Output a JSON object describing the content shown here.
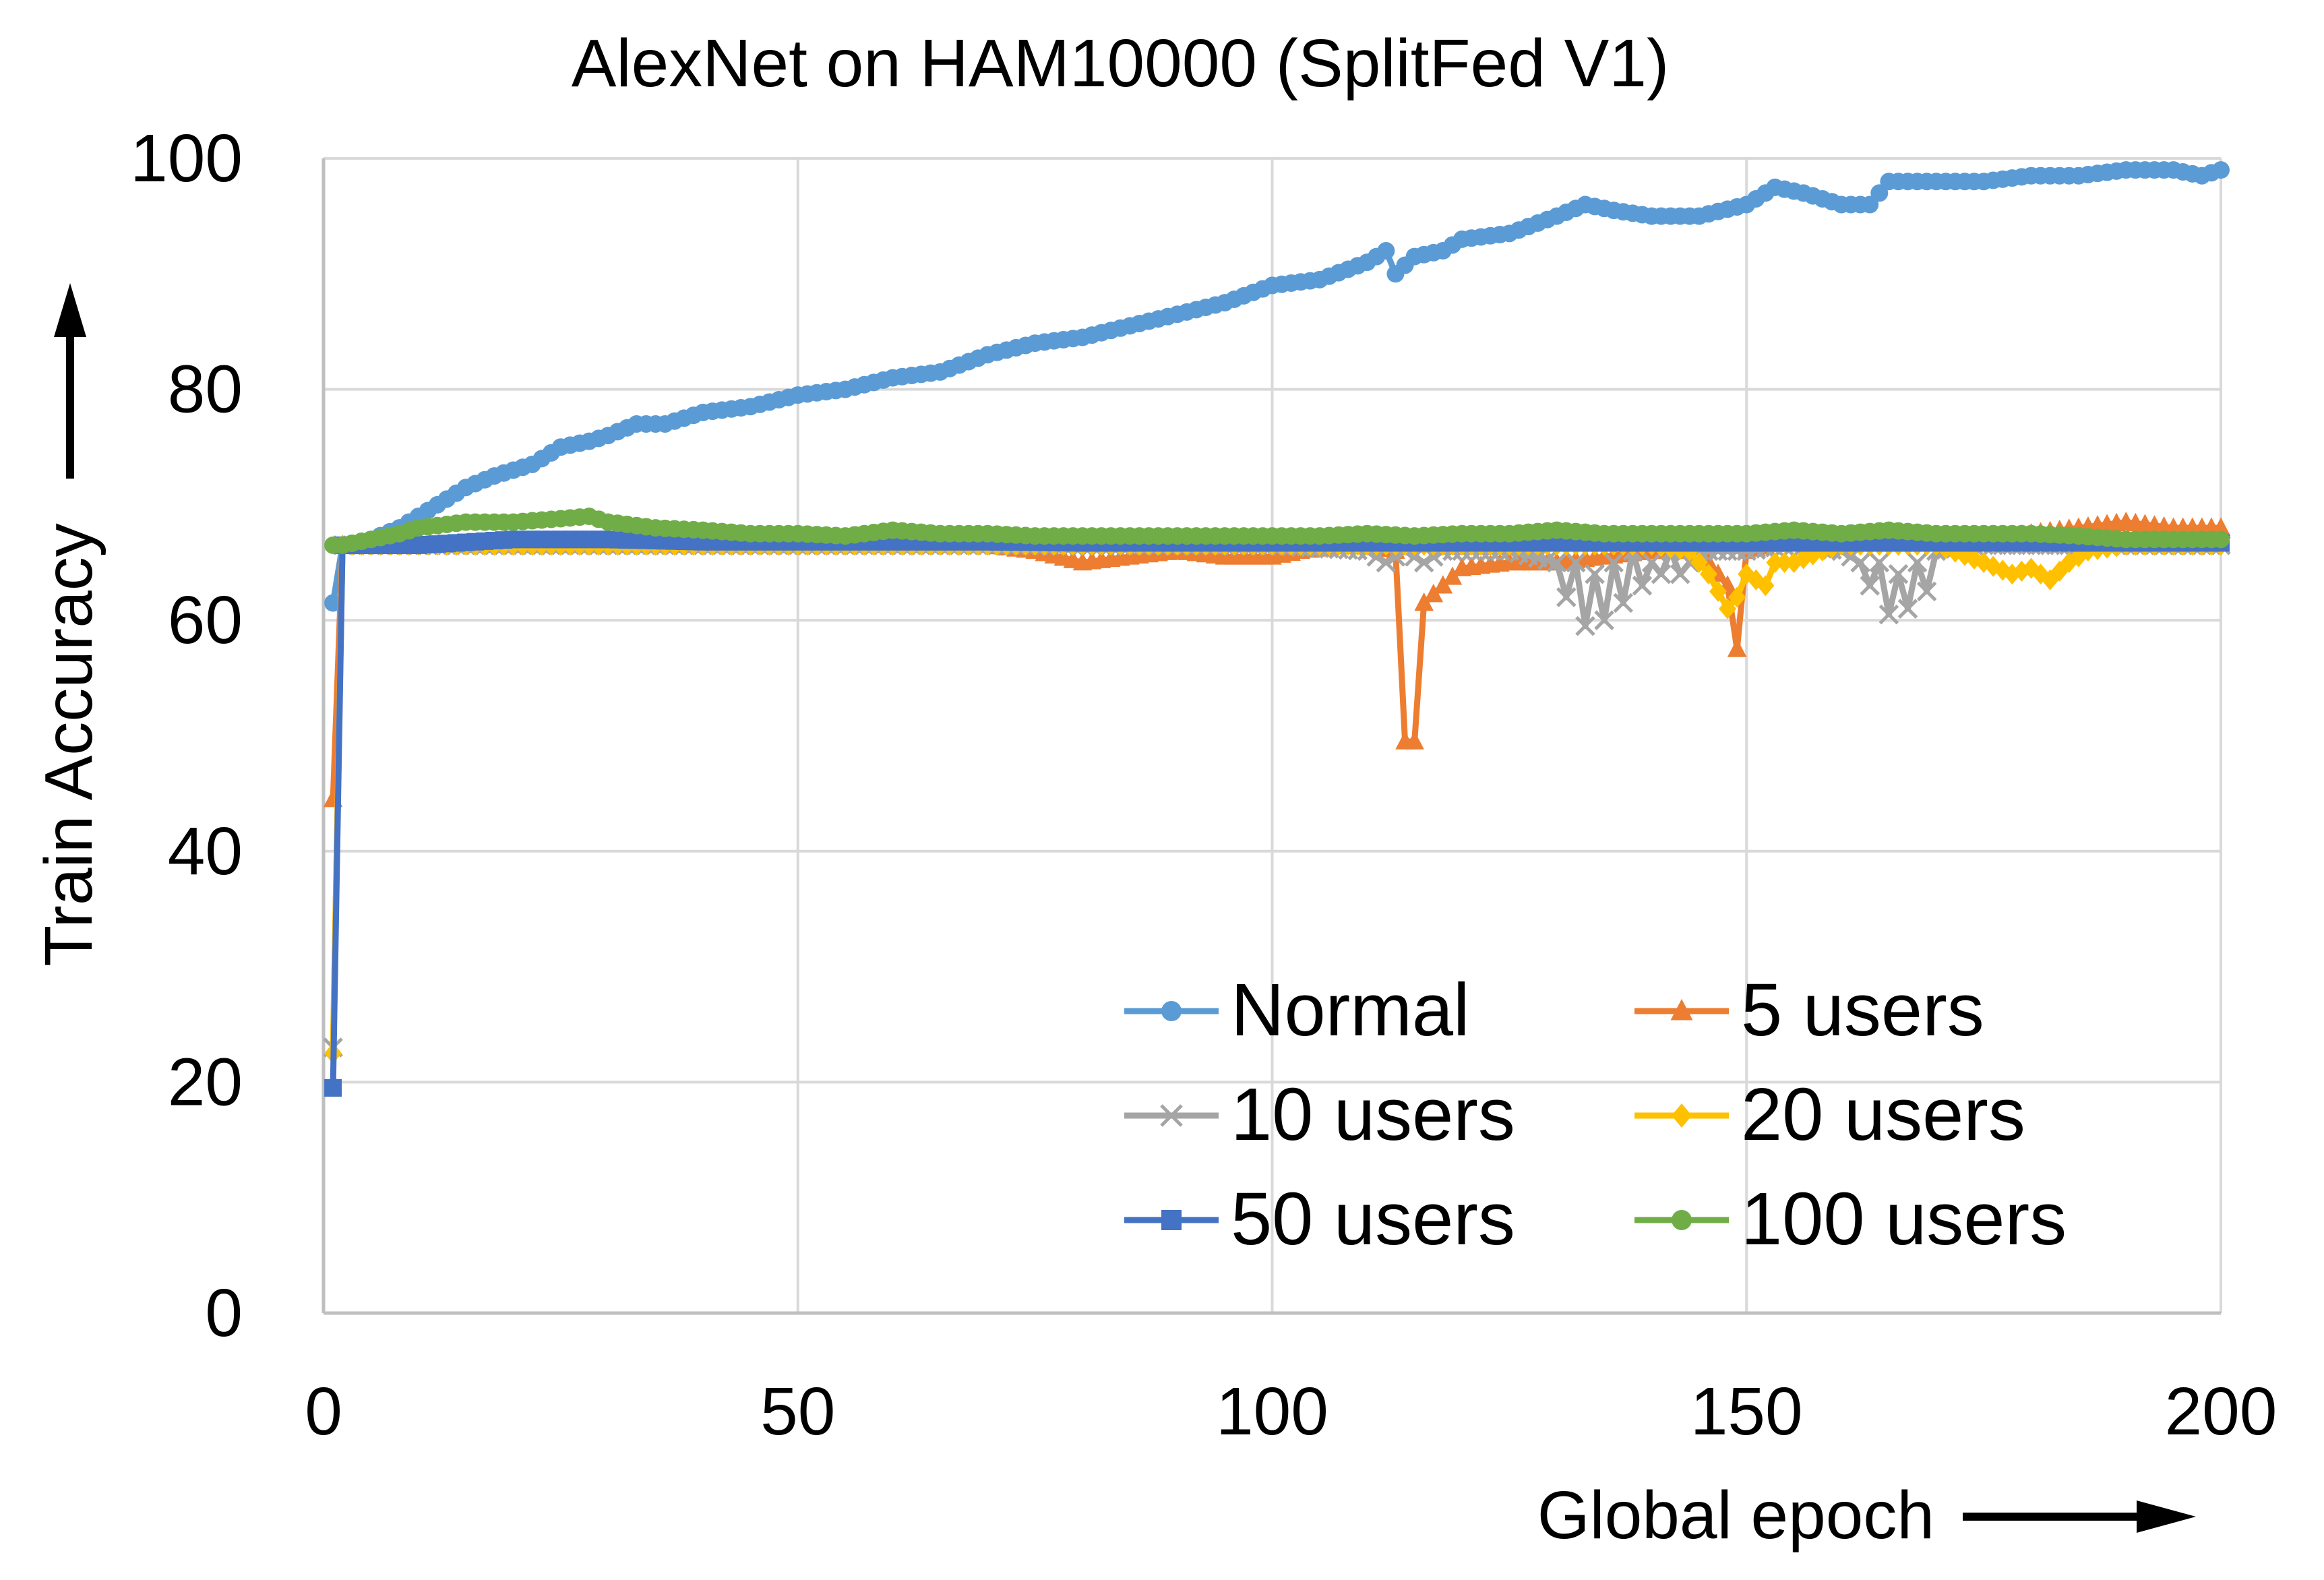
{
  "chart_data": {
    "type": "line",
    "title": "AlexNet on HAM10000 (SplitFed V1)",
    "xlabel": "Global epoch",
    "ylabel": "Train Accuracy",
    "xlim": [
      0,
      200
    ],
    "ylim": [
      0,
      100
    ],
    "x_ticks": [
      "0",
      "50",
      "100",
      "150",
      "200"
    ],
    "y_ticks": [
      "0",
      "20",
      "40",
      "60",
      "80",
      "100"
    ],
    "grid": true,
    "legend_position": "bottom-right",
    "series": [
      {
        "name": "Normal",
        "color": "#5b9bd5",
        "marker": "circle",
        "points": [
          [
            1,
            61.5
          ],
          [
            2,
            66.5
          ],
          [
            5,
            67
          ],
          [
            8,
            68
          ],
          [
            10,
            69
          ],
          [
            12,
            70
          ],
          [
            15,
            71.5
          ],
          [
            18,
            72.5
          ],
          [
            20,
            73
          ],
          [
            22,
            73.5
          ],
          [
            25,
            75
          ],
          [
            28,
            75.5
          ],
          [
            30,
            76
          ],
          [
            33,
            77
          ],
          [
            36,
            77
          ],
          [
            40,
            78
          ],
          [
            45,
            78.5
          ],
          [
            50,
            79.5
          ],
          [
            55,
            80
          ],
          [
            60,
            81
          ],
          [
            65,
            81.5
          ],
          [
            70,
            83
          ],
          [
            75,
            84
          ],
          [
            80,
            84.5
          ],
          [
            85,
            85.5
          ],
          [
            90,
            86.5
          ],
          [
            95,
            87.5
          ],
          [
            100,
            89
          ],
          [
            105,
            89.5
          ],
          [
            110,
            91
          ],
          [
            112,
            92
          ],
          [
            113,
            90
          ],
          [
            115,
            91.5
          ],
          [
            118,
            92
          ],
          [
            120,
            93
          ],
          [
            125,
            93.5
          ],
          [
            130,
            95
          ],
          [
            133,
            96
          ],
          [
            136,
            95.5
          ],
          [
            140,
            95
          ],
          [
            145,
            95
          ],
          [
            150,
            96
          ],
          [
            153,
            97.5
          ],
          [
            156,
            97
          ],
          [
            160,
            96
          ],
          [
            163,
            96
          ],
          [
            165,
            98
          ],
          [
            170,
            98
          ],
          [
            175,
            98
          ],
          [
            180,
            98.5
          ],
          [
            185,
            98.5
          ],
          [
            190,
            99
          ],
          [
            195,
            99
          ],
          [
            198,
            98.5
          ],
          [
            200,
            99
          ]
        ]
      },
      {
        "name": "5 users",
        "color": "#ed7d31",
        "marker": "triangle",
        "points": [
          [
            1,
            44.5
          ],
          [
            2,
            66.5
          ],
          [
            10,
            66.5
          ],
          [
            20,
            66.5
          ],
          [
            30,
            66.5
          ],
          [
            40,
            66.5
          ],
          [
            50,
            66.5
          ],
          [
            60,
            66.5
          ],
          [
            70,
            66.5
          ],
          [
            75,
            66
          ],
          [
            80,
            65
          ],
          [
            85,
            65.5
          ],
          [
            90,
            66
          ],
          [
            95,
            65.5
          ],
          [
            100,
            65.5
          ],
          [
            103,
            66
          ],
          [
            108,
            66.5
          ],
          [
            110,
            66.5
          ],
          [
            113,
            66
          ],
          [
            114,
            49.5
          ],
          [
            115,
            49.5
          ],
          [
            116,
            61.5
          ],
          [
            118,
            63
          ],
          [
            120,
            64.5
          ],
          [
            125,
            65
          ],
          [
            130,
            65
          ],
          [
            135,
            65.5
          ],
          [
            140,
            66
          ],
          [
            145,
            66
          ],
          [
            148,
            63
          ],
          [
            149,
            57.5
          ],
          [
            150,
            66
          ],
          [
            155,
            67
          ],
          [
            160,
            67
          ],
          [
            165,
            67
          ],
          [
            170,
            67
          ],
          [
            175,
            67
          ],
          [
            180,
            67.5
          ],
          [
            185,
            68
          ],
          [
            190,
            68.5
          ],
          [
            195,
            68
          ],
          [
            200,
            68
          ]
        ]
      },
      {
        "name": "10 users",
        "color": "#a5a5a5",
        "marker": "x",
        "points": [
          [
            1,
            23
          ],
          [
            2,
            66.5
          ],
          [
            20,
            66.5
          ],
          [
            50,
            66.5
          ],
          [
            80,
            66.5
          ],
          [
            100,
            66.5
          ],
          [
            110,
            66
          ],
          [
            112,
            65
          ],
          [
            114,
            66
          ],
          [
            116,
            65
          ],
          [
            118,
            66
          ],
          [
            125,
            66
          ],
          [
            130,
            65
          ],
          [
            131,
            62
          ],
          [
            132,
            65
          ],
          [
            133,
            59.5
          ],
          [
            134,
            64
          ],
          [
            135,
            60
          ],
          [
            136,
            65
          ],
          [
            137,
            61.5
          ],
          [
            138,
            66
          ],
          [
            139,
            63
          ],
          [
            140,
            65
          ],
          [
            141,
            64
          ],
          [
            142,
            66
          ],
          [
            143,
            64
          ],
          [
            145,
            66
          ],
          [
            150,
            66
          ],
          [
            155,
            66.5
          ],
          [
            160,
            66
          ],
          [
            162,
            65
          ],
          [
            163,
            63
          ],
          [
            164,
            65
          ],
          [
            165,
            60.5
          ],
          [
            166,
            64
          ],
          [
            167,
            61
          ],
          [
            168,
            65
          ],
          [
            169,
            62.5
          ],
          [
            170,
            66
          ],
          [
            175,
            66.5
          ],
          [
            180,
            66.5
          ],
          [
            190,
            66.5
          ],
          [
            200,
            66.5
          ]
        ]
      },
      {
        "name": "20 users",
        "color": "#ffc000",
        "marker": "diamond",
        "points": [
          [
            1,
            22.5
          ],
          [
            2,
            66.5
          ],
          [
            20,
            66.5
          ],
          [
            50,
            66.5
          ],
          [
            80,
            66.5
          ],
          [
            100,
            66.5
          ],
          [
            120,
            66.5
          ],
          [
            140,
            66.5
          ],
          [
            144,
            66
          ],
          [
            146,
            64
          ],
          [
            148,
            61
          ],
          [
            149,
            62
          ],
          [
            150,
            64
          ],
          [
            152,
            63
          ],
          [
            153,
            65
          ],
          [
            155,
            65
          ],
          [
            158,
            66
          ],
          [
            160,
            66.5
          ],
          [
            170,
            66.5
          ],
          [
            175,
            65
          ],
          [
            178,
            64
          ],
          [
            180,
            64.5
          ],
          [
            182,
            63.5
          ],
          [
            184,
            65
          ],
          [
            186,
            66
          ],
          [
            190,
            66.5
          ],
          [
            200,
            66.5
          ]
        ]
      },
      {
        "name": "50 users",
        "color": "#4472c4",
        "marker": "square",
        "points": [
          [
            1,
            19.5
          ],
          [
            2,
            66.5
          ],
          [
            10,
            66.5
          ],
          [
            20,
            67
          ],
          [
            30,
            67
          ],
          [
            40,
            66.8
          ],
          [
            50,
            66.8
          ],
          [
            60,
            66.8
          ],
          [
            70,
            66.8
          ],
          [
            80,
            66.7
          ],
          [
            90,
            66.7
          ],
          [
            100,
            66.7
          ],
          [
            110,
            66.7
          ],
          [
            120,
            66.7
          ],
          [
            130,
            66.7
          ],
          [
            140,
            66.7
          ],
          [
            150,
            66.7
          ],
          [
            160,
            66.7
          ],
          [
            170,
            66.7
          ],
          [
            180,
            66.7
          ],
          [
            190,
            66.7
          ],
          [
            200,
            66.7
          ]
        ]
      },
      {
        "name": "100 users",
        "color": "#70ad47",
        "marker": "circle",
        "points": [
          [
            1,
            66.5
          ],
          [
            2,
            66.5
          ],
          [
            5,
            67
          ],
          [
            8,
            67.5
          ],
          [
            10,
            68
          ],
          [
            15,
            68.5
          ],
          [
            20,
            68.5
          ],
          [
            25,
            68.8
          ],
          [
            28,
            69
          ],
          [
            30,
            68.5
          ],
          [
            35,
            68
          ],
          [
            40,
            67.8
          ],
          [
            45,
            67.5
          ],
          [
            50,
            67.5
          ],
          [
            55,
            67.3
          ],
          [
            60,
            67.8
          ],
          [
            65,
            67.5
          ],
          [
            70,
            67.5
          ],
          [
            75,
            67.3
          ],
          [
            80,
            67.3
          ],
          [
            85,
            67.3
          ],
          [
            90,
            67.3
          ],
          [
            95,
            67.3
          ],
          [
            100,
            67.3
          ],
          [
            105,
            67.3
          ],
          [
            110,
            67.5
          ],
          [
            115,
            67.3
          ],
          [
            120,
            67.5
          ],
          [
            125,
            67.5
          ],
          [
            130,
            67.8
          ],
          [
            135,
            67.5
          ],
          [
            140,
            67.5
          ],
          [
            145,
            67.5
          ],
          [
            150,
            67.5
          ],
          [
            155,
            67.8
          ],
          [
            160,
            67.5
          ],
          [
            165,
            67.8
          ],
          [
            170,
            67.5
          ],
          [
            175,
            67.5
          ],
          [
            180,
            67.5
          ],
          [
            185,
            67.3
          ],
          [
            190,
            67
          ],
          [
            195,
            67
          ],
          [
            200,
            67
          ]
        ]
      }
    ]
  }
}
